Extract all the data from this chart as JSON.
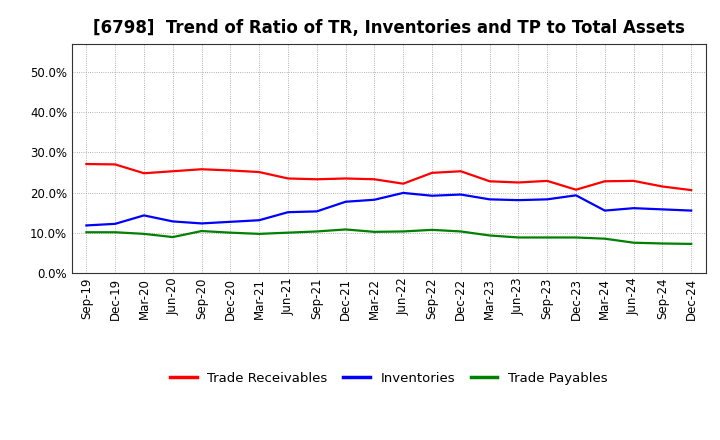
{
  "title": "[6798]  Trend of Ratio of TR, Inventories and TP to Total Assets",
  "x_labels": [
    "Sep-19",
    "Dec-19",
    "Mar-20",
    "Jun-20",
    "Sep-20",
    "Dec-20",
    "Mar-21",
    "Jun-21",
    "Sep-21",
    "Dec-21",
    "Mar-22",
    "Jun-22",
    "Sep-22",
    "Dec-22",
    "Mar-23",
    "Jun-23",
    "Sep-23",
    "Dec-23",
    "Mar-24",
    "Jun-24",
    "Sep-24",
    "Dec-24"
  ],
  "trade_receivables": [
    0.271,
    0.27,
    0.248,
    0.253,
    0.258,
    0.255,
    0.251,
    0.235,
    0.233,
    0.235,
    0.233,
    0.222,
    0.249,
    0.253,
    0.228,
    0.225,
    0.229,
    0.207,
    0.228,
    0.229,
    0.215,
    0.206
  ],
  "inventories": [
    0.118,
    0.122,
    0.143,
    0.128,
    0.123,
    0.127,
    0.131,
    0.151,
    0.153,
    0.177,
    0.182,
    0.199,
    0.192,
    0.195,
    0.183,
    0.181,
    0.183,
    0.193,
    0.155,
    0.161,
    0.158,
    0.155
  ],
  "trade_payables": [
    0.101,
    0.101,
    0.097,
    0.089,
    0.104,
    0.1,
    0.097,
    0.1,
    0.103,
    0.108,
    0.102,
    0.103,
    0.107,
    0.103,
    0.093,
    0.088,
    0.088,
    0.088,
    0.085,
    0.075,
    0.073,
    0.072
  ],
  "line_colors": {
    "trade_receivables": "#FF0000",
    "inventories": "#0000FF",
    "trade_payables": "#008000"
  },
  "legend_labels": [
    "Trade Receivables",
    "Inventories",
    "Trade Payables"
  ],
  "ylim": [
    0.0,
    0.57
  ],
  "yticks": [
    0.0,
    0.1,
    0.2,
    0.3,
    0.4,
    0.5
  ],
  "background_color": "#ffffff",
  "plot_bg_color": "#ffffff",
  "grid_color": "#999999",
  "title_fontsize": 12,
  "axis_fontsize": 8.5,
  "legend_fontsize": 9.5,
  "line_width": 1.6
}
